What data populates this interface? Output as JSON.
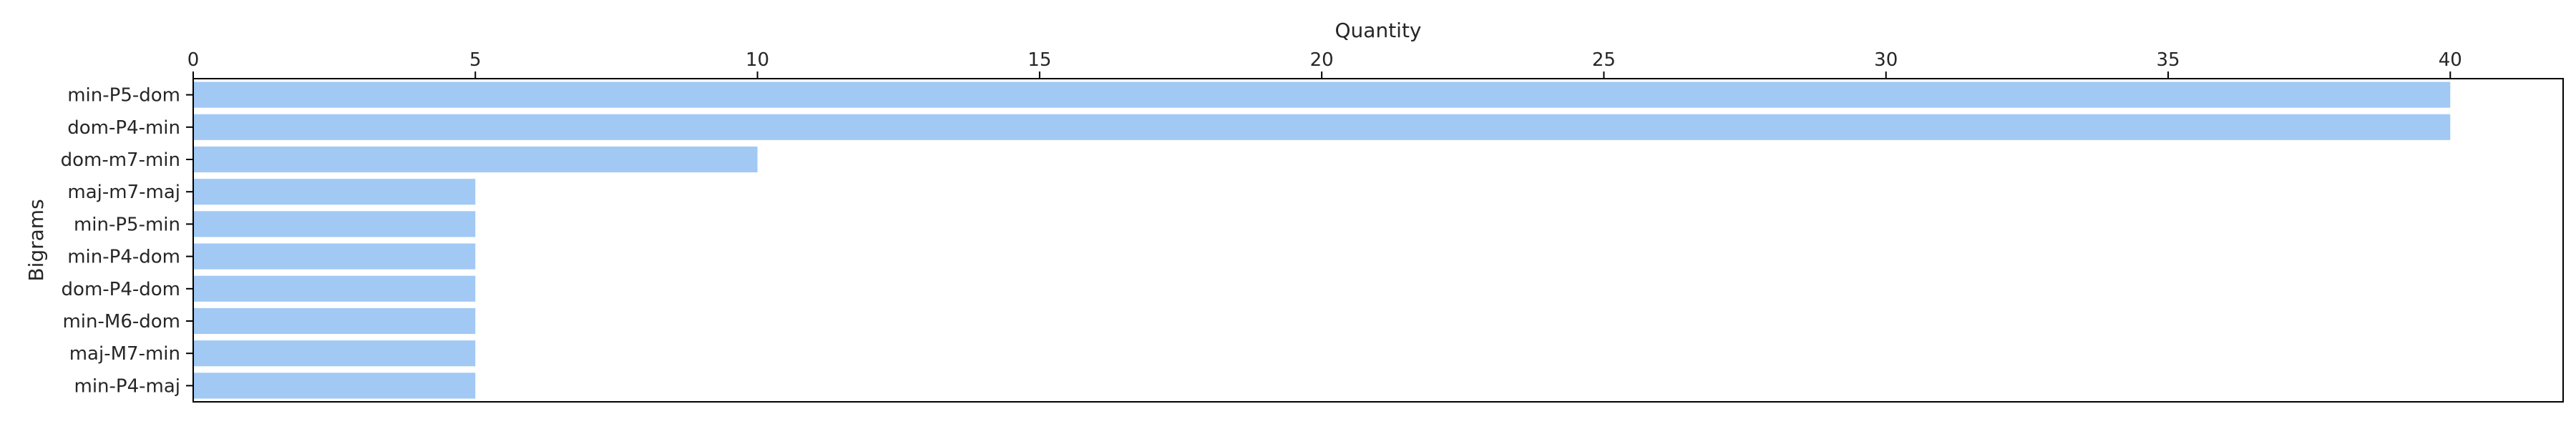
{
  "chart_data": {
    "type": "bar",
    "orientation": "horizontal",
    "categories": [
      "min-P5-dom",
      "dom-P4-min",
      "dom-m7-min",
      "maj-m7-maj",
      "min-P5-min",
      "min-P4-dom",
      "dom-P4-dom",
      "min-M6-dom",
      "maj-M7-min",
      "min-P4-maj"
    ],
    "values": [
      40,
      40,
      10,
      5,
      5,
      5,
      5,
      5,
      5,
      5
    ],
    "title": "",
    "xlabel": "Quantity",
    "ylabel": "Bigrams",
    "xlim": [
      0,
      42
    ],
    "x_ticks": [
      0,
      5,
      10,
      15,
      20,
      25,
      30,
      35,
      40
    ],
    "x_axis_position": "top",
    "grid": false,
    "legend": "none",
    "bar_color": "#a1c9f4",
    "axis_color": "#000000",
    "text_color": "#262626"
  }
}
